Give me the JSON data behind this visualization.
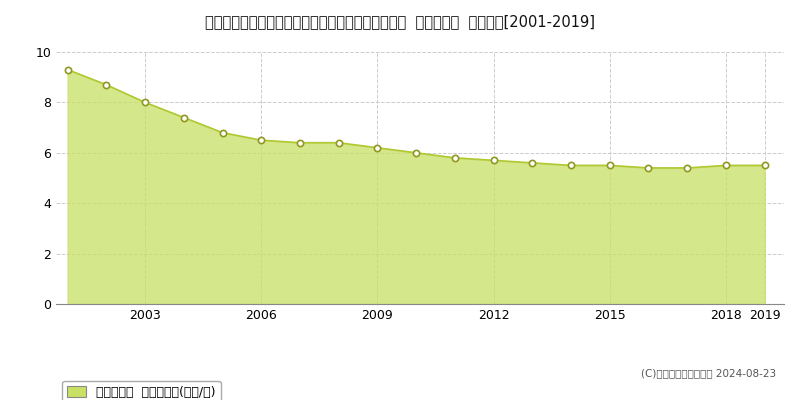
{
  "title": "岐阜県揖斐郡大野町大字小衣斐字折口３１２番１外  基準地価格  地価推移[2001-2019]",
  "years": [
    2001,
    2002,
    2003,
    2004,
    2005,
    2006,
    2007,
    2008,
    2009,
    2010,
    2011,
    2012,
    2013,
    2014,
    2015,
    2016,
    2017,
    2018,
    2019
  ],
  "values": [
    9.3,
    8.7,
    8.0,
    7.4,
    6.8,
    6.5,
    6.4,
    6.4,
    6.2,
    6.0,
    5.8,
    5.7,
    5.6,
    5.5,
    5.5,
    5.4,
    5.4,
    5.5,
    5.5
  ],
  "ylim": [
    0,
    10
  ],
  "yticks": [
    0,
    2,
    4,
    6,
    8,
    10
  ],
  "xticks": [
    2003,
    2006,
    2009,
    2012,
    2015,
    2018,
    2019
  ],
  "fill_color": "#c8e064",
  "fill_alpha": 0.75,
  "line_color": "#b0c832",
  "marker_color": "white",
  "marker_edge_color": "#909820",
  "background_color": "#ffffff",
  "plot_bg_color": "#ffffff",
  "grid_color": "#cccccc",
  "legend_label": "基準地価格  平均坪単価(万円/坪)",
  "legend_color": "#c8e064",
  "copyright_text": "(C)土地価格ドットコム 2024-08-23",
  "title_fontsize": 10.5,
  "axis_fontsize": 9,
  "legend_fontsize": 9
}
